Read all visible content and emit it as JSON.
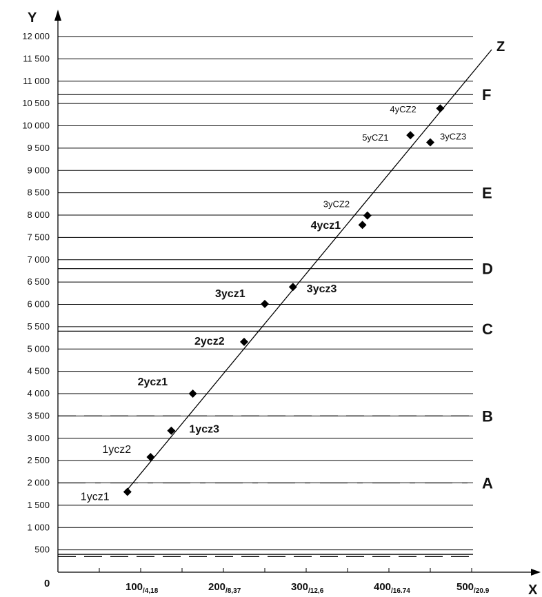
{
  "chart_data": {
    "type": "scatter",
    "y_axis_label": "Y",
    "x_axis_label": "X",
    "line_label": "Z",
    "origin_label": "0",
    "y_tick_labels": [
      "500",
      "1 000",
      "1 500",
      "2 000",
      "2 500",
      "3 000",
      "3 500",
      "4 000",
      "4 500",
      "5 000",
      "5 500",
      "6 000",
      "6 500",
      "7 000",
      "7 500",
      "8 000",
      "8 500",
      "9 000",
      "9 500",
      "10 000",
      "10 500",
      "11 000",
      "11 500",
      "12 000"
    ],
    "y_ticks": [
      500,
      1000,
      1500,
      2000,
      2500,
      3000,
      3500,
      4000,
      4500,
      5000,
      5500,
      6000,
      6500,
      7000,
      7500,
      8000,
      8500,
      9000,
      9500,
      10000,
      10500,
      11000,
      11500,
      12000
    ],
    "x_ticks": [
      {
        "main": "100",
        "sub": "/4,18",
        "value": 100
      },
      {
        "main": "200",
        "sub": "/8,37",
        "value": 200
      },
      {
        "main": "300",
        "sub": "/12,6",
        "value": 300
      },
      {
        "main": "400",
        "sub": "/16.74",
        "value": 400
      },
      {
        "main": "500",
        "sub": "/20.9",
        "value": 500
      }
    ],
    "ylim": [
      0,
      12000
    ],
    "xlim": [
      0,
      500
    ],
    "boundary_lines": [
      {
        "y": 400,
        "style": "solid"
      },
      {
        "y": 350,
        "style": "dashed"
      },
      {
        "y": 2000,
        "style": "dashdot"
      },
      {
        "y": 3500,
        "style": "dashed"
      },
      {
        "y": 5400,
        "style": "solid"
      },
      {
        "y": 6800,
        "style": "solid"
      },
      {
        "y": 10700,
        "style": "solid"
      }
    ],
    "zones": [
      {
        "label": "A",
        "y": 2000
      },
      {
        "label": "B",
        "y": 3500
      },
      {
        "label": "C",
        "y": 5450
      },
      {
        "label": "D",
        "y": 6800
      },
      {
        "label": "E",
        "y": 8500
      },
      {
        "label": "F",
        "y": 10700
      }
    ],
    "trend_line": {
      "x1": 84,
      "y1": 1850,
      "x2": 525,
      "y2": 12000
    },
    "points": [
      {
        "label": "1ycz1",
        "x": 84,
        "y": 1800
      },
      {
        "label": "1ycz2",
        "x": 112,
        "y": 2580
      },
      {
        "label": "1ycz3",
        "x": 137,
        "y": 3170
      },
      {
        "label": "2ycz1",
        "x": 163,
        "y": 4000
      },
      {
        "label": "2ycz2",
        "x": 225,
        "y": 5160
      },
      {
        "label": "3ycz1",
        "x": 250,
        "y": 6010
      },
      {
        "label": "3ycz3",
        "x": 284,
        "y": 6390
      },
      {
        "label": "4ycz1",
        "x": 368,
        "y": 7780
      },
      {
        "label": "3yCZ2",
        "x": 374,
        "y": 7990
      },
      {
        "label": "5yCZ1",
        "x": 426,
        "y": 9790
      },
      {
        "label": "3yCZ3",
        "x": 450,
        "y": 9630
      },
      {
        "label": "4yCZ2",
        "x": 462,
        "y": 10390
      }
    ]
  }
}
